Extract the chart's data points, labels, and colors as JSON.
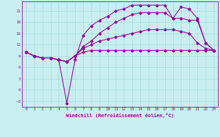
{
  "title": "",
  "xlabel": "Windchill (Refroidissement éolien,°C)",
  "ylabel": "",
  "background_color": "#c8eef0",
  "grid_color": "#aadddd",
  "line_color": "#990099",
  "xlim": [
    -0.5,
    23.5
  ],
  "ylim": [
    -4.5,
    23.5
  ],
  "xticks": [
    0,
    1,
    2,
    3,
    4,
    5,
    6,
    7,
    8,
    9,
    10,
    11,
    12,
    13,
    14,
    15,
    16,
    17,
    18,
    19,
    20,
    21,
    22,
    23
  ],
  "yticks": [
    -3,
    0,
    3,
    6,
    9,
    12,
    15,
    18,
    21
  ],
  "line1_x": [
    0,
    1,
    2,
    3,
    4,
    5,
    6,
    7,
    8,
    9,
    10,
    11,
    12,
    13,
    14,
    15,
    16,
    17,
    18,
    19,
    20,
    21,
    22,
    23
  ],
  "line1_y": [
    10,
    9,
    8.5,
    8.5,
    8,
    7.5,
    9,
    10,
    10.5,
    10.5,
    10.5,
    10.5,
    10.5,
    10.5,
    10.5,
    10.5,
    10.5,
    10.5,
    10.5,
    10.5,
    10.5,
    10.5,
    10.5,
    10.5
  ],
  "line2_x": [
    0,
    1,
    2,
    3,
    4,
    5,
    6,
    7,
    8,
    9,
    10,
    11,
    12,
    13,
    14,
    15,
    16,
    17,
    18,
    19,
    20,
    21,
    22,
    23
  ],
  "line2_y": [
    10,
    9,
    8.5,
    8.5,
    8,
    7.5,
    9,
    11,
    12,
    13,
    13.5,
    14,
    14.5,
    15,
    15.5,
    16,
    16,
    16,
    16,
    15.5,
    15,
    12.5,
    11,
    10.5
  ],
  "line3_x": [
    0,
    1,
    2,
    3,
    4,
    5,
    6,
    7,
    8,
    9,
    10,
    11,
    12,
    13,
    14,
    15,
    16,
    17,
    18,
    19,
    20,
    21,
    22,
    23
  ],
  "line3_y": [
    10,
    9,
    8.5,
    8.5,
    8,
    -3.5,
    8,
    14.5,
    17,
    18.5,
    19.5,
    21,
    21.5,
    22.5,
    22.5,
    22.5,
    22.5,
    22.5,
    19,
    22,
    21.5,
    19,
    12.5,
    10.5
  ],
  "line4_x": [
    0,
    1,
    2,
    3,
    4,
    5,
    6,
    7,
    8,
    9,
    10,
    11,
    12,
    13,
    14,
    15,
    16,
    17,
    18,
    19,
    20,
    21,
    22,
    23
  ],
  "line4_y": [
    10,
    9,
    8.5,
    8.5,
    8,
    7.5,
    9,
    11.5,
    13,
    15,
    16.5,
    18,
    19,
    20,
    20.5,
    20.5,
    20.5,
    20.5,
    19,
    19,
    18.5,
    18.5,
    12.5,
    10.5
  ]
}
